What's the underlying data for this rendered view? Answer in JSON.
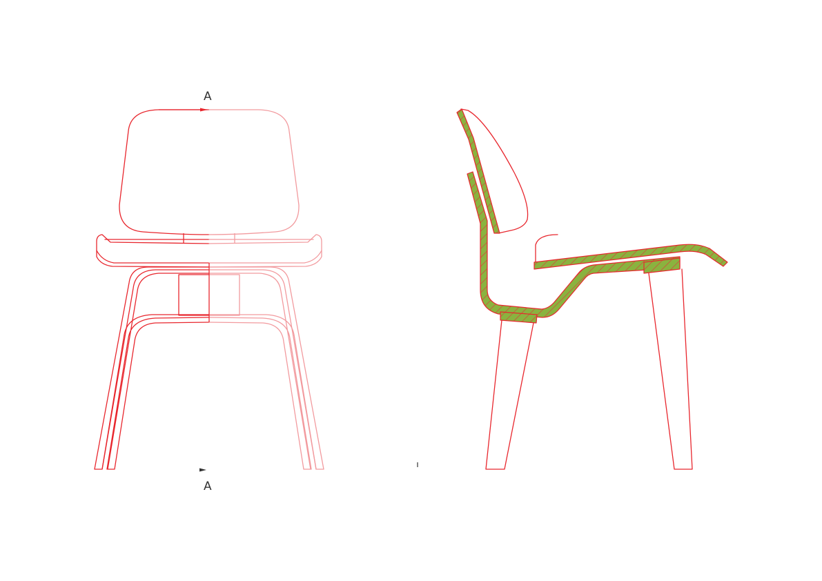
{
  "section_marks": {
    "top": "A",
    "bottom": "A"
  },
  "colors": {
    "outline": "#e8262d",
    "outline_light": "#f29a9e",
    "section_fill": "#8ab33f",
    "hatch": "#d8433a",
    "label": "#333333",
    "background": "#ffffff"
  },
  "views": [
    {
      "name": "front-elevation",
      "icon": "chair-front-icon"
    },
    {
      "name": "section-a-a",
      "icon": "chair-side-section-icon"
    }
  ]
}
